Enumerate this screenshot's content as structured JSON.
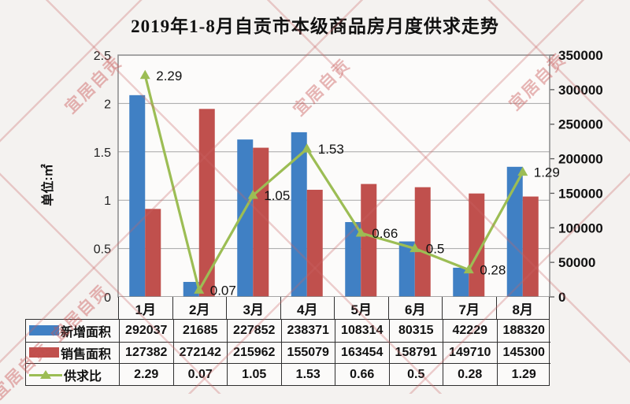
{
  "title": "2019年1-8月自贡市本级商品房月度供求走势",
  "watermark": {
    "text": "宜居自贡"
  },
  "chart_data": {
    "type": "bar+line combo with data table",
    "categories": [
      "1月",
      "2月",
      "3月",
      "4月",
      "5月",
      "6月",
      "7月",
      "8月"
    ],
    "series": [
      {
        "name": "新增面积",
        "type": "bar",
        "axis": "right",
        "color": "#4080c4",
        "values": [
          292037,
          21685,
          227852,
          238371,
          108314,
          80315,
          42229,
          188320
        ],
        "labels": [
          "292037",
          "21685",
          "227852",
          "238371",
          "108314",
          "80315",
          "42229",
          "188320"
        ]
      },
      {
        "name": "销售面积",
        "type": "bar",
        "axis": "right",
        "color": "#c0504d",
        "values": [
          127382,
          272142,
          215962,
          155079,
          163454,
          158791,
          149710,
          145300
        ],
        "labels": [
          "127382",
          "272142",
          "215962",
          "155079",
          "163454",
          "158791",
          "149710",
          "145300"
        ]
      },
      {
        "name": "供求比",
        "type": "line",
        "axis": "left",
        "color": "#9cbd54",
        "values": [
          2.29,
          0.07,
          1.05,
          1.53,
          0.66,
          0.5,
          0.28,
          1.29
        ],
        "labels": [
          "2.29",
          "0.07",
          "1.05",
          "1.53",
          "0.66",
          "0.5",
          "0.28",
          "1.29"
        ]
      }
    ],
    "left_axis": {
      "title": "单位:㎡",
      "min": 0,
      "max": 2.5,
      "tick_step": 0.5,
      "ticks": [
        "0",
        "0.5",
        "1",
        "1.5",
        "2",
        "2.5"
      ]
    },
    "right_axis": {
      "min": 0,
      "max": 350000,
      "tick_step": 50000,
      "ticks": [
        "0",
        "50000",
        "100000",
        "150000",
        "200000",
        "250000",
        "300000",
        "350000"
      ]
    },
    "grid": true,
    "legend_position": "table-left-column",
    "colors": {
      "grid": "#a6a6a6",
      "plot_border": "#8a8a8a",
      "table_border": "#2f2f2f"
    }
  }
}
